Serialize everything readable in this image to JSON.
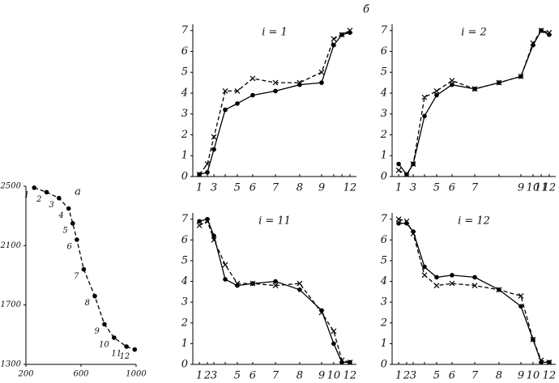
{
  "panel_label": "б",
  "chart_data": [
    {
      "type": "line",
      "title": "a",
      "x": [
        260,
        350,
        440,
        510,
        540,
        570,
        620,
        700,
        770,
        840,
        930,
        990
      ],
      "point_labels": [
        "1",
        "2",
        "3",
        "4",
        "5",
        "6",
        "7",
        "8",
        "9",
        "10",
        "11",
        "12"
      ],
      "series": [
        {
          "color": "#000000",
          "marker": "dot",
          "dash": true,
          "values": [
            2490,
            2460,
            2420,
            2350,
            2250,
            2140,
            1940,
            1760,
            1570,
            1480,
            1420,
            1400
          ]
        }
      ],
      "xlim": [
        200,
        1000
      ],
      "xticks": [
        200,
        600,
        1000
      ],
      "ylim": [
        1300,
        2500
      ],
      "yticks": [
        1300,
        1700,
        2100,
        2500
      ]
    },
    {
      "type": "line",
      "title": "i = 1",
      "categories": [
        "1",
        null,
        "3",
        null,
        "5",
        "6",
        "7",
        "8",
        "9",
        null,
        null,
        "12"
      ],
      "series": [
        {
          "color": "#000000",
          "marker": "dot",
          "dash": false,
          "values": [
            0.1,
            0.2,
            1.3,
            3.2,
            3.5,
            3.9,
            4.1,
            4.4,
            4.5,
            6.3,
            6.8,
            6.9
          ]
        },
        {
          "color": "#000000",
          "marker": "x",
          "dash": true,
          "values": [
            0.1,
            0.6,
            1.9,
            4.1,
            4.1,
            4.7,
            4.5,
            4.5,
            5.0,
            6.6,
            6.8,
            7.0
          ]
        }
      ],
      "ylim": [
        0,
        7.3
      ],
      "yticks": [
        0,
        1,
        2,
        3,
        4,
        5,
        6,
        7
      ]
    },
    {
      "type": "line",
      "title": "i = 2",
      "categories": [
        "1",
        null,
        "3",
        null,
        "5",
        "6",
        "7",
        null,
        "9",
        "10",
        "11",
        "12"
      ],
      "series": [
        {
          "color": "#000000",
          "marker": "dot",
          "dash": false,
          "values": [
            0.6,
            0.1,
            0.6,
            2.9,
            3.9,
            4.4,
            4.2,
            4.5,
            4.8,
            6.3,
            7.0,
            6.8
          ]
        },
        {
          "color": "#000000",
          "marker": "x",
          "dash": true,
          "values": [
            0.3,
            0.1,
            0.6,
            3.8,
            4.1,
            4.6,
            4.2,
            4.5,
            4.8,
            6.4,
            7.0,
            6.9
          ]
        }
      ],
      "ylim": [
        0,
        7.3
      ],
      "yticks": [
        0,
        1,
        2,
        3,
        4,
        5,
        6,
        7
      ]
    },
    {
      "type": "line",
      "title": "i = 11",
      "categories": [
        "1",
        "2",
        "3",
        null,
        "5",
        "6",
        "7",
        "8",
        "9",
        "10",
        null,
        "12"
      ],
      "series": [
        {
          "color": "#000000",
          "marker": "dot",
          "dash": false,
          "values": [
            6.9,
            7.0,
            6.2,
            4.1,
            3.8,
            3.9,
            4.0,
            3.6,
            2.6,
            1.0,
            0.1,
            0.1
          ]
        },
        {
          "color": "#000000",
          "marker": "x",
          "dash": true,
          "values": [
            6.7,
            6.9,
            6.0,
            4.8,
            3.9,
            3.9,
            3.8,
            3.9,
            2.5,
            1.6,
            0.2,
            0.1
          ]
        }
      ],
      "ylim": [
        0,
        7.3
      ],
      "yticks": [
        0,
        1,
        2,
        3,
        4,
        5,
        6,
        7
      ]
    },
    {
      "type": "line",
      "title": "i = 12",
      "categories": [
        "1",
        "2",
        "3",
        null,
        "5",
        "6",
        "7",
        "8",
        "9",
        "10",
        null,
        "12"
      ],
      "series": [
        {
          "color": "#000000",
          "marker": "dot",
          "dash": false,
          "values": [
            6.8,
            6.8,
            6.4,
            4.7,
            4.2,
            4.3,
            4.2,
            3.6,
            2.8,
            1.2,
            0.1,
            0.1
          ]
        },
        {
          "color": "#000000",
          "marker": "x",
          "dash": true,
          "values": [
            7.0,
            6.9,
            6.3,
            4.3,
            3.8,
            3.9,
            3.8,
            3.6,
            3.3,
            1.2,
            0.2,
            0.1
          ]
        }
      ],
      "ylim": [
        0,
        7.3
      ],
      "yticks": [
        0,
        1,
        2,
        3,
        4,
        5,
        6,
        7
      ]
    }
  ]
}
